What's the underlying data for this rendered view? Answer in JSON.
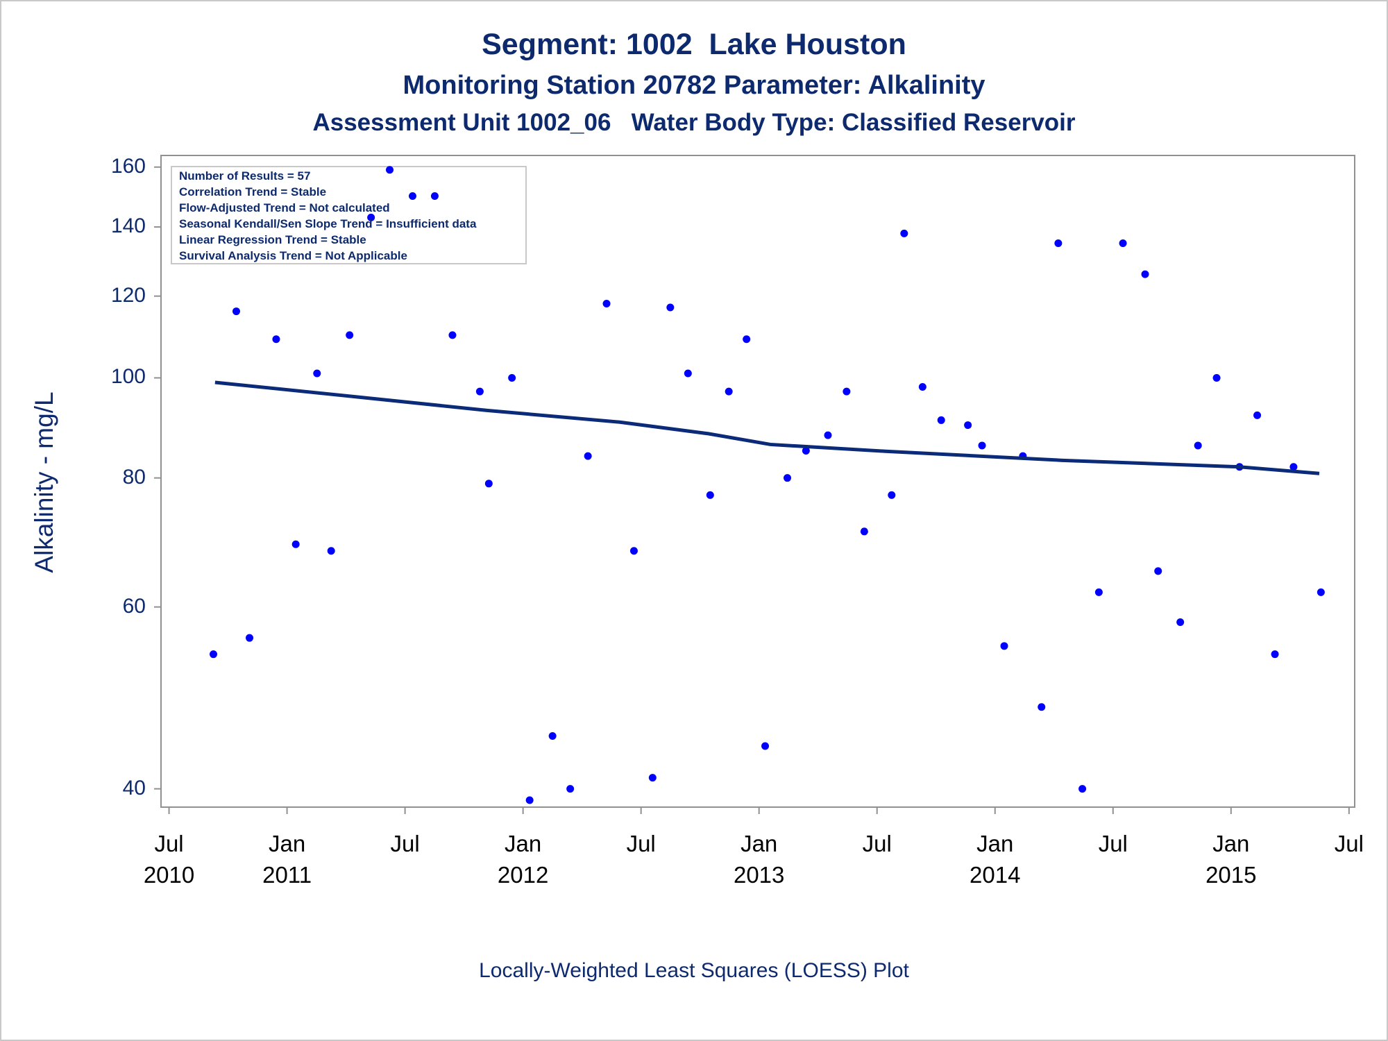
{
  "chart_data": {
    "type": "scatter",
    "title": "Segment: 1002  Lake Houston",
    "subtitles": [
      "Monitoring Station 20782 Parameter: Alkalinity",
      "Assessment Unit 1002_06   Water Body Type: Classified Reservoir"
    ],
    "annotations": [
      "Number of Results = 57",
      "Correlation Trend = Stable",
      "Flow-Adjusted Trend = Not calculated",
      "Seasonal Kendall/Sen Slope Trend = Insufficient data",
      "Linear Regression Trend = Stable",
      "Survival Analysis Trend = Not Applicable"
    ],
    "ylabel": "Alkalinity - mg/L",
    "footnote": "Locally-Weighted Least Squares (LOESS) Plot",
    "yscale": "log",
    "ylim": [
      38.4,
      164.2
    ],
    "yticks": [
      40,
      60,
      80,
      100,
      120,
      140,
      160
    ],
    "xlim": [
      2010.466,
      2015.524
    ],
    "xticks": [
      {
        "value": 2010.5,
        "label": "Jul 2010"
      },
      {
        "value": 2011.0,
        "label": "Jan 2011"
      },
      {
        "value": 2011.5,
        "label": "Jul"
      },
      {
        "value": 2012.0,
        "label": "Jan 2012"
      },
      {
        "value": 2012.5,
        "label": "Jul"
      },
      {
        "value": 2013.0,
        "label": "Jan 2013"
      },
      {
        "value": 2013.5,
        "label": "Jul"
      },
      {
        "value": 2014.0,
        "label": "Jan 2014"
      },
      {
        "value": 2014.5,
        "label": "Jul"
      },
      {
        "value": 2015.0,
        "label": "Jan 2015"
      },
      {
        "value": 2015.5,
        "label": "Jul"
      }
    ],
    "series": [
      {
        "type": "scatter",
        "color": "#0000ff",
        "x": [
          2010.688,
          2010.785,
          2010.841,
          2010.954,
          2011.037,
          2011.127,
          2011.187,
          2011.265,
          2011.356,
          2011.435,
          2011.532,
          2011.626,
          2011.701,
          2011.817,
          2011.855,
          2011.953,
          2012.028,
          2012.125,
          2012.2,
          2012.275,
          2012.354,
          2012.47,
          2012.549,
          2012.624,
          2012.699,
          2012.793,
          2012.872,
          2012.947,
          2013.026,
          2013.12,
          2013.199,
          2013.292,
          2013.371,
          2013.446,
          2013.562,
          2013.615,
          2013.693,
          2013.772,
          2013.885,
          2013.945,
          2014.039,
          2014.118,
          2014.197,
          2014.268,
          2014.37,
          2014.44,
          2014.542,
          2014.636,
          2014.691,
          2014.785,
          2014.86,
          2014.939,
          2015.036,
          2015.111,
          2015.186,
          2015.265,
          2015.381
        ],
        "values": [
          54,
          116,
          56,
          109,
          69,
          101,
          68,
          110,
          143,
          159,
          150,
          150,
          110,
          97,
          79,
          100,
          39,
          45,
          40,
          84,
          118,
          68,
          41,
          117,
          101,
          77,
          97,
          109,
          44,
          80,
          85,
          88,
          97,
          71,
          77,
          138,
          98,
          91,
          90,
          86,
          55,
          84,
          48,
          135,
          40,
          62,
          135,
          126,
          65,
          58,
          86,
          100,
          82,
          92,
          54,
          82,
          62
        ]
      },
      {
        "type": "line",
        "color": "#0b2a78",
        "x": [
          2010.695,
          2011.284,
          2011.847,
          2012.41,
          2012.785,
          2013.048,
          2013.535,
          2014.286,
          2015.036,
          2015.374
        ],
        "values": [
          99,
          95.9,
          93,
          90.6,
          88.3,
          86.2,
          84.9,
          83.2,
          82,
          80.8
        ]
      }
    ]
  }
}
